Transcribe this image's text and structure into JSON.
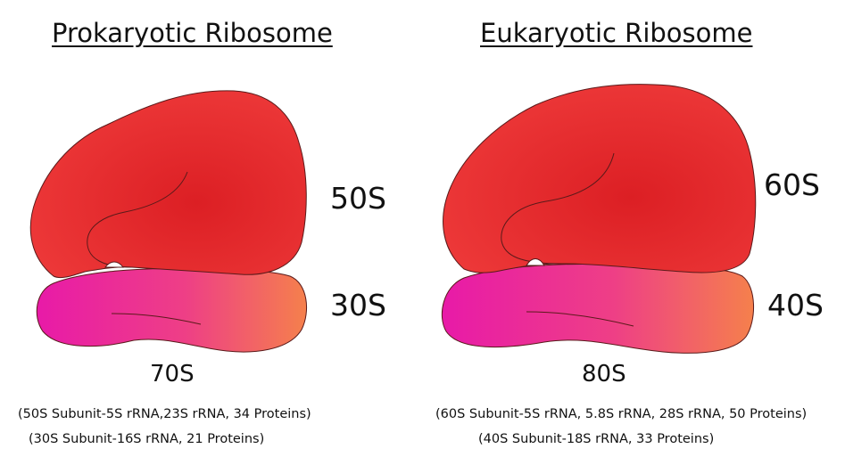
{
  "prokaryotic": {
    "title": "Prokaryotic Ribosome",
    "large_subunit": "50S",
    "small_subunit": "30S",
    "total": "70S",
    "note_large": "(50S Subunit-5S rRNA,23S rRNA, 34 Proteins)",
    "note_small": "(30S Subunit-16S rRNA, 21 Proteins)"
  },
  "eukaryotic": {
    "title": "Eukaryotic Ribosome",
    "large_subunit": "60S",
    "small_subunit": "40S",
    "total": "80S",
    "note_large": "(60S Subunit-5S rRNA, 5.8S rRNA, 28S rRNA, 50 Proteins)",
    "note_small": "(40S Subunit-18S rRNA, 33 Proteins)"
  },
  "colors": {
    "large_subunit": "#e82a2a",
    "small_subunit_start": "#e81aa8",
    "small_subunit_end": "#f37a4a",
    "outline": "#5a1a1a"
  }
}
